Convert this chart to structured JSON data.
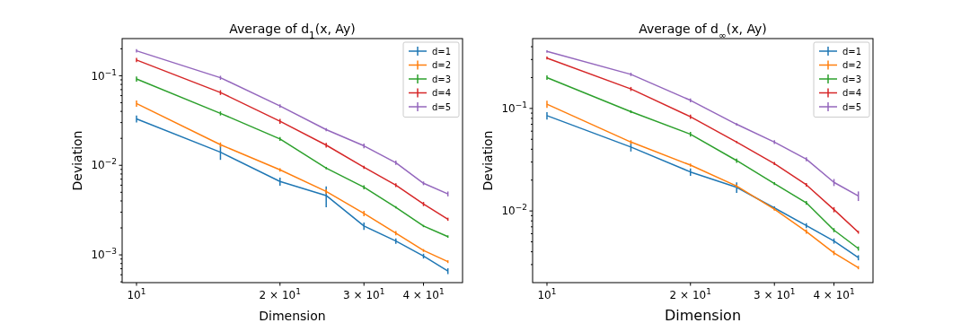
{
  "chart_data": [
    {
      "type": "line",
      "title": "Average of d$_{1}$(x, Ay)",
      "xlabel": "Dimension",
      "ylabel": "Deviation",
      "log": "xy",
      "grid": false,
      "legend": "top right",
      "marker": "none",
      "line_style": "solid",
      "x": [
        10,
        15,
        20,
        25,
        30,
        35,
        40,
        45
      ],
      "xlim": [
        9.33,
        48.3
      ],
      "ylim": [
        0.00049,
        0.26
      ],
      "xticks": [
        {
          "value": 10,
          "label": "10$^{1}$"
        },
        {
          "value": 20,
          "label": "2 × 10$^{1}$"
        },
        {
          "value": 30,
          "label": "3 × 10$^{1}$"
        },
        {
          "value": 40,
          "label": "4 × 10$^{1}$"
        }
      ],
      "yticks": [
        {
          "value": 0.0005,
          "label": null
        },
        {
          "value": 0.0006,
          "label": null
        },
        {
          "value": 0.0007,
          "label": null
        },
        {
          "value": 0.0008,
          "label": null
        },
        {
          "value": 0.0009,
          "label": null
        },
        {
          "value": 0.001,
          "label": "10$^{−3}$"
        },
        {
          "value": 0.002,
          "label": null
        },
        {
          "value": 0.003,
          "label": null
        },
        {
          "value": 0.004,
          "label": null
        },
        {
          "value": 0.005,
          "label": null
        },
        {
          "value": 0.006,
          "label": null
        },
        {
          "value": 0.007,
          "label": null
        },
        {
          "value": 0.008,
          "label": null
        },
        {
          "value": 0.009,
          "label": null
        },
        {
          "value": 0.01,
          "label": "10$^{−2}$"
        },
        {
          "value": 0.02,
          "label": null
        },
        {
          "value": 0.03,
          "label": null
        },
        {
          "value": 0.04,
          "label": null
        },
        {
          "value": 0.05,
          "label": null
        },
        {
          "value": 0.06,
          "label": null
        },
        {
          "value": 0.07,
          "label": null
        },
        {
          "value": 0.08,
          "label": null
        },
        {
          "value": 0.09,
          "label": null
        },
        {
          "value": 0.1,
          "label": "10$^{−1}$"
        },
        {
          "value": 0.2,
          "label": null
        }
      ],
      "series": [
        {
          "name": "d=1",
          "color": "#1f77b4",
          "values": [
            0.033,
            0.014,
            0.0066,
            0.0046,
            0.0021,
            0.00143,
            0.00097,
            0.00066
          ],
          "errors": [
            0.003,
            0.0025,
            0.0007,
            0.0012,
            0.0002,
            0.0001,
            6e-05,
            5e-05
          ]
        },
        {
          "name": "d=2",
          "color": "#ff7f0e",
          "values": [
            0.049,
            0.017,
            0.0089,
            0.0051,
            0.0029,
            0.00175,
            0.00112,
            0.00084
          ],
          "errors": [
            0.004,
            0.001,
            0.0004,
            0.0003,
            0.0002,
            0.0001,
            4e-05,
            3e-05
          ]
        },
        {
          "name": "d=3",
          "color": "#2ca02c",
          "values": [
            0.092,
            0.038,
            0.0197,
            0.0093,
            0.0057,
            0.0034,
            0.0021,
            0.0016
          ],
          "errors": [
            0.006,
            0.002,
            0.001,
            0.0003,
            0.0003,
            0.0001,
            6e-05,
            5e-05
          ]
        },
        {
          "name": "d=4",
          "color": "#d62728",
          "values": [
            0.15,
            0.065,
            0.031,
            0.0168,
            0.0095,
            0.006,
            0.0037,
            0.0025
          ],
          "errors": [
            0.008,
            0.004,
            0.002,
            0.001,
            0.0004,
            0.0003,
            0.0002,
            0.0001
          ]
        },
        {
          "name": "d=5",
          "color": "#9467bd",
          "values": [
            0.19,
            0.095,
            0.046,
            0.025,
            0.0165,
            0.0107,
            0.0063,
            0.0048
          ],
          "errors": [
            0.008,
            0.005,
            0.002,
            0.001,
            0.001,
            0.0006,
            0.0003,
            0.0003
          ]
        }
      ]
    },
    {
      "type": "line",
      "title": "Average of d$_{∞}$(x, Ay)",
      "xlabel": "Dimension",
      "ylabel": "Deviation",
      "log": "xy",
      "grid": false,
      "legend": "top right",
      "marker": "none",
      "line_style": "solid",
      "x": [
        10,
        15,
        20,
        25,
        30,
        35,
        40,
        45
      ],
      "xlim": [
        9.33,
        48.3
      ],
      "ylim": [
        0.002,
        0.48
      ],
      "xticks": [
        {
          "value": 10,
          "label": "10$^{1}$"
        },
        {
          "value": 20,
          "label": "2 × 10$^{1}$"
        },
        {
          "value": 30,
          "label": "3 × 10$^{1}$"
        },
        {
          "value": 40,
          "label": "4 × 10$^{1}$"
        }
      ],
      "yticks": [
        {
          "value": 0.003,
          "label": null
        },
        {
          "value": 0.004,
          "label": null
        },
        {
          "value": 0.005,
          "label": null
        },
        {
          "value": 0.006,
          "label": null
        },
        {
          "value": 0.007,
          "label": null
        },
        {
          "value": 0.008,
          "label": null
        },
        {
          "value": 0.009,
          "label": null
        },
        {
          "value": 0.01,
          "label": "10$^{−2}$"
        },
        {
          "value": 0.02,
          "label": null
        },
        {
          "value": 0.03,
          "label": null
        },
        {
          "value": 0.04,
          "label": null
        },
        {
          "value": 0.05,
          "label": null
        },
        {
          "value": 0.06,
          "label": null
        },
        {
          "value": 0.07,
          "label": null
        },
        {
          "value": 0.08,
          "label": null
        },
        {
          "value": 0.09,
          "label": null
        },
        {
          "value": 0.1,
          "label": "10$^{−1}$"
        },
        {
          "value": 0.2,
          "label": null
        },
        {
          "value": 0.3,
          "label": null
        },
        {
          "value": 0.4,
          "label": null
        }
      ],
      "series": [
        {
          "name": "d=1",
          "color": "#1f77b4",
          "values": [
            0.085,
            0.042,
            0.024,
            0.017,
            0.0107,
            0.0072,
            0.0051,
            0.0035
          ],
          "errors": [
            0.007,
            0.004,
            0.002,
            0.002,
            0.0004,
            0.0004,
            0.0003,
            0.0002
          ]
        },
        {
          "name": "d=2",
          "color": "#ff7f0e",
          "values": [
            0.11,
            0.047,
            0.028,
            0.0175,
            0.0104,
            0.0063,
            0.0039,
            0.0028
          ],
          "errors": [
            0.009,
            0.002,
            0.001,
            0.0006,
            0.0003,
            0.0003,
            0.0002,
            0.0001
          ]
        },
        {
          "name": "d=3",
          "color": "#2ca02c",
          "values": [
            0.2,
            0.093,
            0.056,
            0.031,
            0.0185,
            0.012,
            0.0065,
            0.0043
          ],
          "errors": [
            0.01,
            0.003,
            0.003,
            0.0015,
            0.0006,
            0.0005,
            0.0003,
            0.0002
          ]
        },
        {
          "name": "d=4",
          "color": "#d62728",
          "values": [
            0.31,
            0.155,
            0.083,
            0.047,
            0.029,
            0.018,
            0.0103,
            0.0062
          ],
          "errors": [
            0.01,
            0.007,
            0.004,
            0.001,
            0.001,
            0.0007,
            0.0006,
            0.0002
          ]
        },
        {
          "name": "d=5",
          "color": "#9467bd",
          "values": [
            0.36,
            0.215,
            0.12,
            0.07,
            0.047,
            0.032,
            0.019,
            0.014
          ],
          "errors": [
            0.01,
            0.008,
            0.005,
            0.002,
            0.002,
            0.0015,
            0.0015,
            0.0015
          ]
        }
      ]
    }
  ]
}
